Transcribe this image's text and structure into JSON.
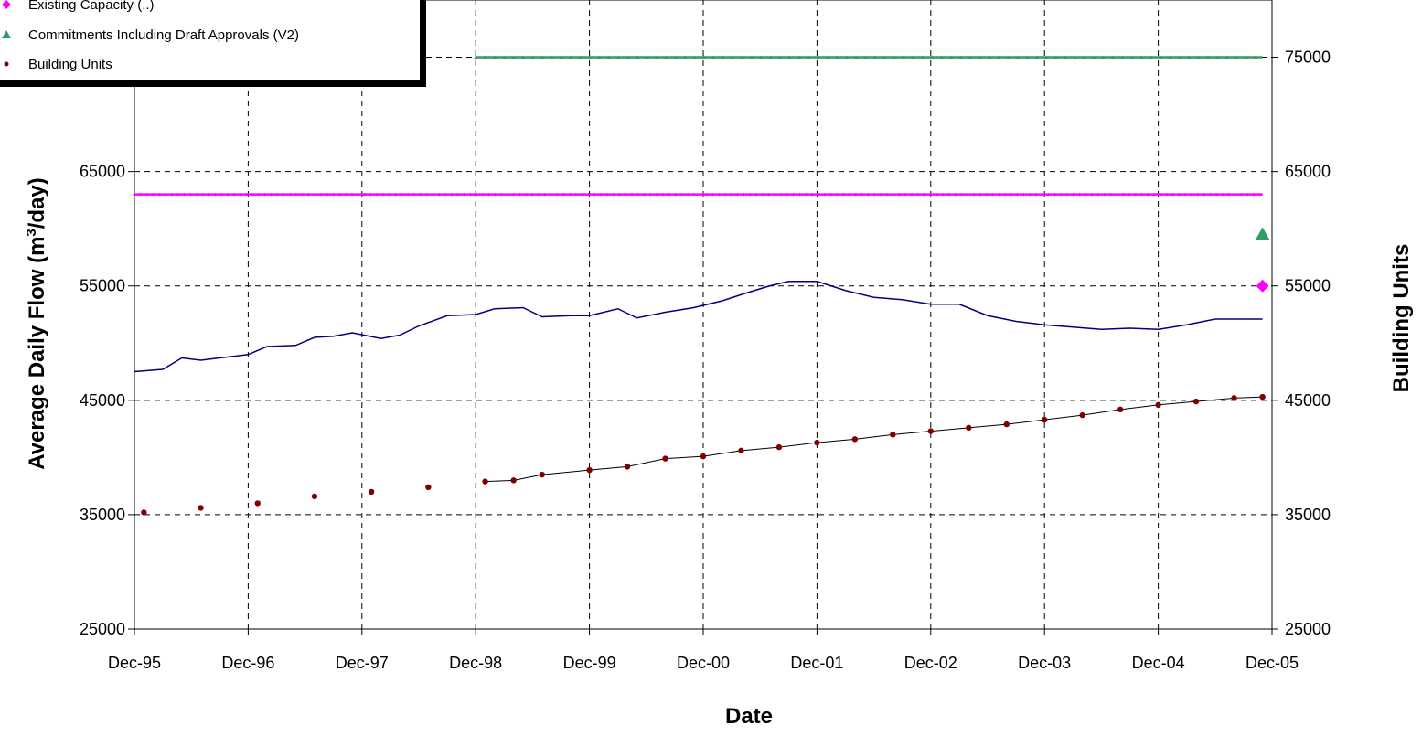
{
  "chart_data": {
    "type": "line",
    "title": "",
    "xlabel": "Date",
    "ylabel": "Average Daily Flow (m³/day)",
    "ylabel_parts": {
      "before": "Average Daily Flow (m",
      "sup": "3",
      "after": "/day)"
    },
    "y2label": "Building Units",
    "xlim": [
      "1995-12",
      "2005-12"
    ],
    "x_ticks": [
      "Dec-95",
      "Dec-96",
      "Dec-97",
      "Dec-98",
      "Dec-99",
      "Dec-00",
      "Dec-01",
      "Dec-02",
      "Dec-03",
      "Dec-04",
      "Dec-05"
    ],
    "ylim": [
      25000,
      80000
    ],
    "y_ticks": [
      25000,
      35000,
      45000,
      55000,
      65000
    ],
    "y2lim": [
      25000,
      80000
    ],
    "y2_ticks": [
      25000,
      35000,
      45000,
      55000,
      65000,
      75000
    ],
    "grid": true,
    "legend_position": "top-left",
    "series": [
      {
        "name": "",
        "role": "flow",
        "axis": "left",
        "color": "#000080",
        "marker": "none",
        "points": [
          [
            "1995-12",
            47500
          ],
          [
            "1996-03",
            47700
          ],
          [
            "1996-05",
            48700
          ],
          [
            "1996-07",
            48500
          ],
          [
            "1996-09",
            48700
          ],
          [
            "1996-12",
            49000
          ],
          [
            "1997-02",
            49700
          ],
          [
            "1997-05",
            49800
          ],
          [
            "1997-07",
            50500
          ],
          [
            "1997-09",
            50600
          ],
          [
            "1997-11",
            50900
          ],
          [
            "1998-02",
            50400
          ],
          [
            "1998-04",
            50700
          ],
          [
            "1998-06",
            51500
          ],
          [
            "1998-09",
            52400
          ],
          [
            "1998-12",
            52500
          ],
          [
            "1999-02",
            53000
          ],
          [
            "1999-05",
            53100
          ],
          [
            "1999-07",
            52300
          ],
          [
            "1999-10",
            52400
          ],
          [
            "1999-12",
            52400
          ],
          [
            "2000-03",
            53000
          ],
          [
            "2000-05",
            52200
          ],
          [
            "2000-08",
            52700
          ],
          [
            "2000-11",
            53100
          ],
          [
            "2001-02",
            53700
          ],
          [
            "2001-05",
            54500
          ],
          [
            "2001-07",
            55000
          ],
          [
            "2001-09",
            55400
          ],
          [
            "2001-12",
            55400
          ],
          [
            "2002-03",
            54600
          ],
          [
            "2002-06",
            54000
          ],
          [
            "2002-09",
            53800
          ],
          [
            "2002-12",
            53400
          ],
          [
            "2003-03",
            53400
          ],
          [
            "2003-06",
            52400
          ],
          [
            "2003-09",
            51900
          ],
          [
            "2003-12",
            51600
          ],
          [
            "2004-03",
            51400
          ],
          [
            "2004-06",
            51200
          ],
          [
            "2004-09",
            51300
          ],
          [
            "2004-12",
            51200
          ],
          [
            "2005-03",
            51600
          ],
          [
            "2005-06",
            52100
          ],
          [
            "2005-11",
            52100
          ]
        ]
      },
      {
        "name": "",
        "role": "capacity",
        "axis": "left",
        "color": "#ff00ff",
        "marker": "diamond",
        "points": [
          [
            "1995-12",
            63000
          ],
          [
            "2005-11",
            63000
          ]
        ]
      },
      {
        "name": "",
        "role": "existing-capacity-end-marker",
        "axis": "left",
        "color": "#ff00ff",
        "marker": "diamond",
        "points": [
          [
            "2005-11",
            55000
          ]
        ]
      },
      {
        "name": "Commitments Including Draft Approvals (V2)",
        "axis": "right",
        "color": "#339966",
        "marker": "triangle",
        "points": [
          [
            "1998-12",
            75000
          ],
          [
            "2005-11",
            75000
          ],
          [
            "2005-11",
            59500
          ]
        ]
      },
      {
        "name": "Building Units",
        "axis": "right",
        "color": "#800000",
        "marker": "circle",
        "points": [
          [
            "1996-01",
            35200
          ],
          [
            "1996-07",
            35600
          ],
          [
            "1997-01",
            36000
          ],
          [
            "1997-07",
            36600
          ],
          [
            "1998-01",
            37000
          ],
          [
            "1998-07",
            37400
          ],
          [
            "1999-01",
            37900
          ],
          [
            "1999-04",
            38000
          ],
          [
            "1999-07",
            38500
          ],
          [
            "1999-12",
            38900
          ],
          [
            "2000-04",
            39200
          ],
          [
            "2000-08",
            39900
          ],
          [
            "2000-12",
            40100
          ],
          [
            "2001-04",
            40600
          ],
          [
            "2001-08",
            40900
          ],
          [
            "2001-12",
            41300
          ],
          [
            "2002-04",
            41600
          ],
          [
            "2002-08",
            42000
          ],
          [
            "2002-12",
            42300
          ],
          [
            "2003-04",
            42600
          ],
          [
            "2003-08",
            42900
          ],
          [
            "2003-12",
            43300
          ],
          [
            "2004-04",
            43700
          ],
          [
            "2004-08",
            44200
          ],
          [
            "2004-12",
            44600
          ],
          [
            "2005-04",
            44900
          ],
          [
            "2005-08",
            45200
          ],
          [
            "2005-11",
            45300
          ]
        ]
      }
    ],
    "legend_entries": [
      {
        "label": "Existing Capacity (..)",
        "color": "#ff00ff",
        "marker": "diamond"
      },
      {
        "label": "Commitments Including Draft Approvals (V2)",
        "color": "#339966",
        "marker": "triangle"
      },
      {
        "label": "Building Units",
        "color": "#800000",
        "marker": "circle"
      }
    ]
  }
}
